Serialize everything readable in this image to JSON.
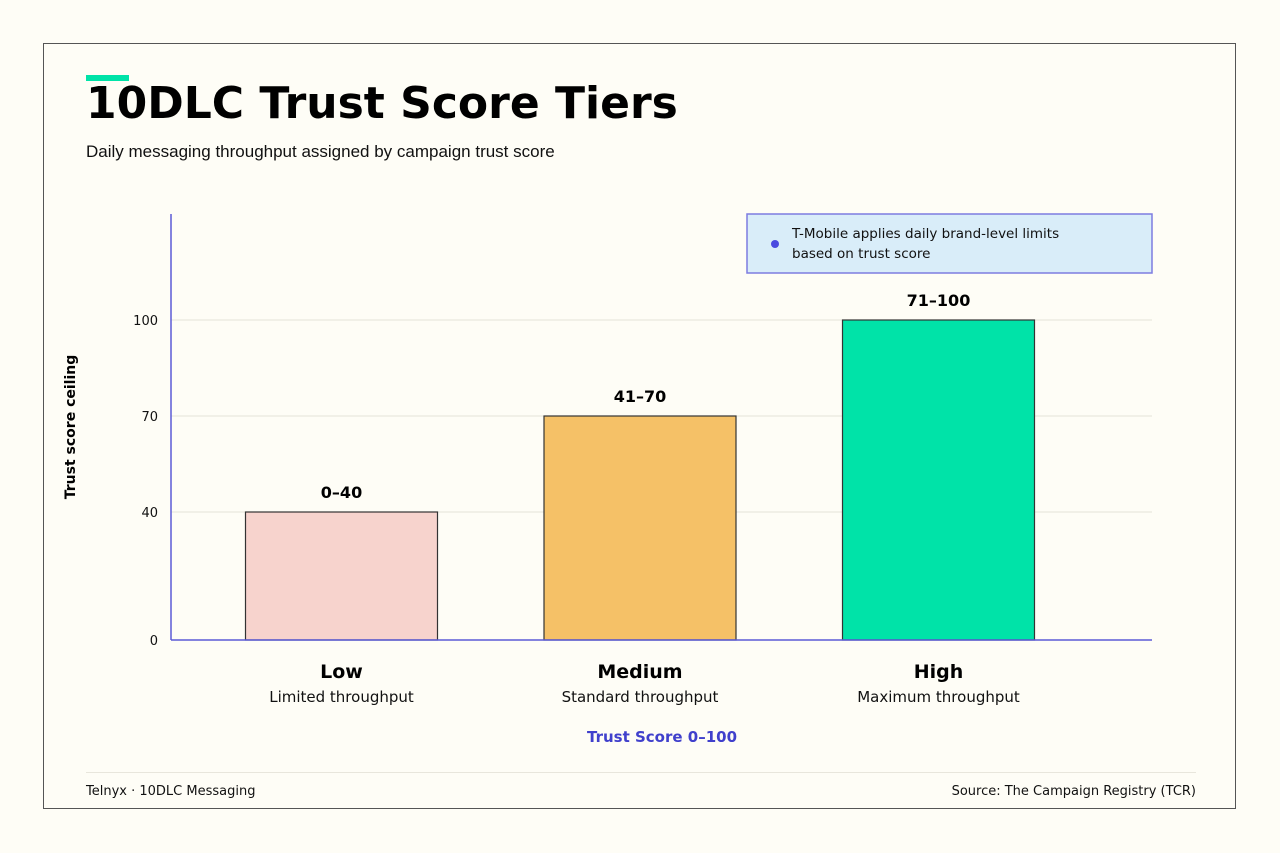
{
  "header": {
    "title": "10DLC Trust Score Tiers",
    "subtitle": "Daily messaging throughput assigned by campaign trust score"
  },
  "footer": {
    "left": "Telnyx · 10DLC Messaging",
    "right": "Source: The Campaign Registry (TCR)"
  },
  "annotation": {
    "text_line1": "T-Mobile applies daily brand-level limits",
    "text_line2": "based on trust score"
  },
  "colors": {
    "accent": "#00e3a8",
    "axis": "#5b5bd6",
    "xlabel": "#4040cc",
    "annotation_bg": "#d9edf9",
    "annotation_border": "#7d7de0",
    "annotation_dot": "#4a4ae0"
  },
  "chart_data": {
    "type": "bar",
    "categories": [
      "Low",
      "Medium",
      "High"
    ],
    "category_sublabels": [
      "Limited throughput",
      "Standard throughput",
      "Maximum throughput"
    ],
    "values": [
      40,
      70,
      100
    ],
    "value_labels": [
      "0–40",
      "41–70",
      "71–100"
    ],
    "bar_colors": [
      "#f7d3cd",
      "#f5c167",
      "#00e3a8"
    ],
    "ylabel": "Trust score ceiling",
    "xlabel": "Trust Score 0–100",
    "yticks": [
      0,
      40,
      70,
      100
    ],
    "ylim": [
      0,
      100
    ],
    "grid": true
  }
}
